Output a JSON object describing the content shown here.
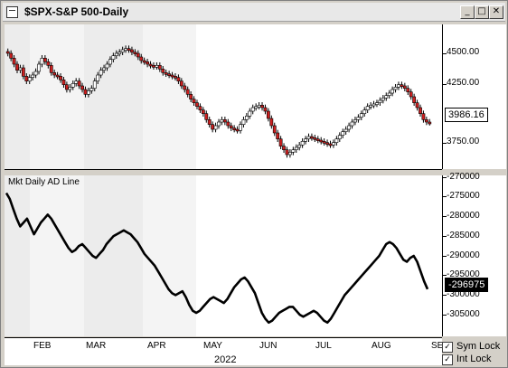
{
  "window": {
    "title": "$SPX-S&P 500-Daily",
    "buttons": {
      "minimize": "_",
      "maximize": "□",
      "close": "✕"
    }
  },
  "price_panel": {
    "y_ticks": [
      "4500.00",
      "4250.00",
      "3750.00"
    ],
    "last_value": "3986.16",
    "colors": {
      "up": "#ffffff",
      "down": "#cc1f1f",
      "outline": "#000000",
      "shade": "#e6e6e6"
    }
  },
  "indicator_panel": {
    "title": "Mkt Daily AD Line",
    "y_ticks": [
      "-270000",
      "-275000",
      "-280000",
      "-285000",
      "-290000",
      "-295000",
      "-300000",
      "-305000"
    ],
    "last_value": "-296975"
  },
  "time_axis": {
    "months": [
      "FEB",
      "MAR",
      "APR",
      "MAY",
      "JUN",
      "JUL",
      "AUG",
      "SE"
    ],
    "year": "2022"
  },
  "controls": {
    "sym_lock": "Sym Lock",
    "int_lock": "Int Lock",
    "check_mark": "✓"
  },
  "chart_data": [
    {
      "type": "candlestick",
      "title": "$SPX-S&P 500-Daily",
      "ylim": [
        3600,
        4800
      ],
      "y_ticks": [
        3750,
        4250,
        4500
      ],
      "last": 3986.16,
      "values": [
        4560,
        4520,
        4470,
        4420,
        4440,
        4370,
        4330,
        4360,
        4380,
        4410,
        4470,
        4520,
        4490,
        4460,
        4400,
        4380,
        4370,
        4340,
        4300,
        4260,
        4280,
        4310,
        4330,
        4290,
        4260,
        4220,
        4250,
        4270,
        4330,
        4380,
        4420,
        4440,
        4470,
        4510,
        4540,
        4560,
        4570,
        4590,
        4600,
        4590,
        4570,
        4560,
        4530,
        4500,
        4490,
        4470,
        4460,
        4450,
        4460,
        4430,
        4400,
        4390,
        4380,
        4370,
        4360,
        4330,
        4290,
        4260,
        4220,
        4180,
        4150,
        4120,
        4090,
        4060,
        4010,
        3970,
        3930,
        3960,
        3990,
        4010,
        3990,
        3960,
        3940,
        3930,
        3920,
        3970,
        4010,
        4040,
        4080,
        4110,
        4120,
        4130,
        4110,
        4080,
        4020,
        3960,
        3900,
        3850,
        3790,
        3760,
        3720,
        3740,
        3760,
        3780,
        3800,
        3830,
        3850,
        3870,
        3860,
        3850,
        3840,
        3830,
        3820,
        3810,
        3800,
        3820,
        3850,
        3880,
        3910,
        3930,
        3960,
        3990,
        4010,
        4030,
        4060,
        4090,
        4120,
        4130,
        4140,
        4150,
        4170,
        4190,
        4210,
        4230,
        4260,
        4280,
        4300,
        4290,
        4270,
        4240,
        4200,
        4150,
        4110,
        4060,
        4010,
        3990,
        3986
      ]
    },
    {
      "type": "line",
      "title": "Mkt Daily AD Line",
      "ylim": [
        -309000,
        -268000
      ],
      "y_ticks": [
        -270000,
        -275000,
        -280000,
        -285000,
        -290000,
        -295000,
        -300000,
        -305000
      ],
      "last": -296975,
      "values": [
        -272500,
        -274000,
        -276500,
        -279000,
        -281000,
        -280000,
        -279000,
        -281000,
        -283000,
        -281500,
        -280000,
        -279000,
        -278000,
        -279000,
        -280500,
        -282000,
        -283500,
        -285000,
        -286500,
        -287500,
        -287000,
        -286000,
        -285500,
        -286500,
        -287500,
        -288500,
        -289000,
        -288000,
        -287000,
        -285500,
        -284500,
        -283500,
        -283000,
        -282500,
        -282000,
        -282500,
        -283000,
        -284000,
        -285000,
        -286500,
        -288000,
        -289000,
        -290000,
        -291000,
        -292500,
        -294000,
        -295500,
        -297000,
        -298000,
        -298500,
        -298000,
        -297500,
        -299000,
        -301000,
        -302500,
        -303000,
        -302500,
        -301500,
        -300500,
        -299500,
        -299000,
        -299500,
        -300000,
        -300500,
        -299500,
        -298000,
        -296500,
        -295500,
        -294500,
        -294000,
        -295000,
        -296500,
        -298000,
        -300500,
        -303000,
        -304500,
        -305500,
        -305000,
        -304000,
        -303000,
        -302500,
        -302000,
        -301500,
        -301500,
        -302500,
        -303500,
        -304000,
        -303500,
        -303000,
        -302500,
        -303000,
        -304000,
        -305000,
        -305500,
        -304500,
        -303000,
        -301500,
        -300000,
        -298500,
        -297500,
        -296500,
        -295500,
        -294500,
        -293500,
        -292500,
        -291500,
        -290500,
        -289500,
        -288500,
        -287000,
        -285500,
        -285000,
        -285500,
        -286500,
        -288000,
        -289500,
        -290000,
        -289000,
        -288500,
        -290000,
        -292500,
        -295000,
        -296975
      ]
    }
  ]
}
